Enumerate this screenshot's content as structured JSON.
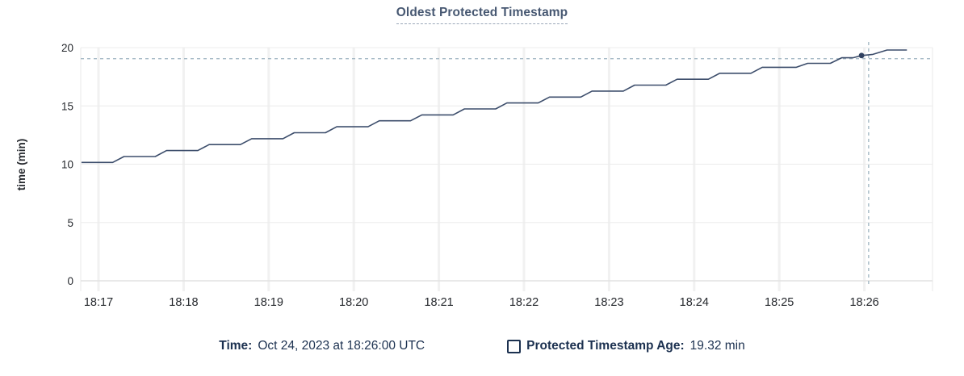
{
  "title": "Oldest Protected Timestamp",
  "legend": {
    "time_label": "Time:",
    "time_value": "Oct 24, 2023 at 18:26:00 UTC",
    "series_label": "Protected Timestamp Age:",
    "series_value": "19.32 min"
  },
  "chart_data": {
    "type": "line",
    "title": "Oldest Protected Timestamp",
    "xlabel": "",
    "ylabel": "time (min)",
    "ylim": [
      0,
      20
    ],
    "y_ticks": [
      0,
      5,
      10,
      15,
      20
    ],
    "x_tick_labels": [
      "18:17",
      "18:18",
      "18:19",
      "18:20",
      "18:21",
      "18:22",
      "18:23",
      "18:24",
      "18:25",
      "18:26"
    ],
    "grid": true,
    "legend_position": "bottom",
    "series": [
      {
        "name": "Protected Timestamp Age",
        "units": "min",
        "points_seconds_from_1817_vs_min": [
          [
            -12,
            10.15
          ],
          [
            10,
            10.15
          ],
          [
            18,
            10.66
          ],
          [
            40,
            10.66
          ],
          [
            48,
            11.17
          ],
          [
            70,
            11.17
          ],
          [
            78,
            11.68
          ],
          [
            100,
            11.68
          ],
          [
            108,
            12.19
          ],
          [
            130,
            12.19
          ],
          [
            138,
            12.7
          ],
          [
            160,
            12.7
          ],
          [
            168,
            13.21
          ],
          [
            190,
            13.21
          ],
          [
            198,
            13.72
          ],
          [
            220,
            13.72
          ],
          [
            228,
            14.23
          ],
          [
            250,
            14.23
          ],
          [
            258,
            14.74
          ],
          [
            280,
            14.74
          ],
          [
            288,
            15.25
          ],
          [
            310,
            15.25
          ],
          [
            318,
            15.76
          ],
          [
            340,
            15.76
          ],
          [
            348,
            16.27
          ],
          [
            370,
            16.27
          ],
          [
            378,
            16.78
          ],
          [
            400,
            16.78
          ],
          [
            408,
            17.29
          ],
          [
            430,
            17.29
          ],
          [
            438,
            17.8
          ],
          [
            460,
            17.8
          ],
          [
            468,
            18.31
          ],
          [
            492,
            18.31
          ],
          [
            500,
            18.65
          ],
          [
            516,
            18.65
          ],
          [
            524,
            19.13
          ],
          [
            532,
            19.13
          ],
          [
            538,
            19.32
          ],
          [
            546,
            19.42
          ],
          [
            556,
            19.79
          ],
          [
            570,
            19.79
          ]
        ]
      }
    ],
    "hover": {
      "time": "Oct 24, 2023 at 18:26:00 UTC",
      "value_min": 19.32,
      "dot_t_seconds": 538,
      "dot_value_min": 19.32,
      "crosshair_t_seconds": 543,
      "crosshair_value_min": 19.05
    },
    "colors": {
      "line": "#3c4d6b",
      "dot": "#2f4160",
      "crosshair_dash": "#9db3c0",
      "grid_horizontal": "#ececec",
      "grid_vertical": "#f1f1f1",
      "axis_baseline": "#e2e2e2",
      "plot_border": "#f0f0f0",
      "tick_text": "#26292e",
      "title_text": "#475872",
      "legend_text": "#1c3150"
    }
  }
}
